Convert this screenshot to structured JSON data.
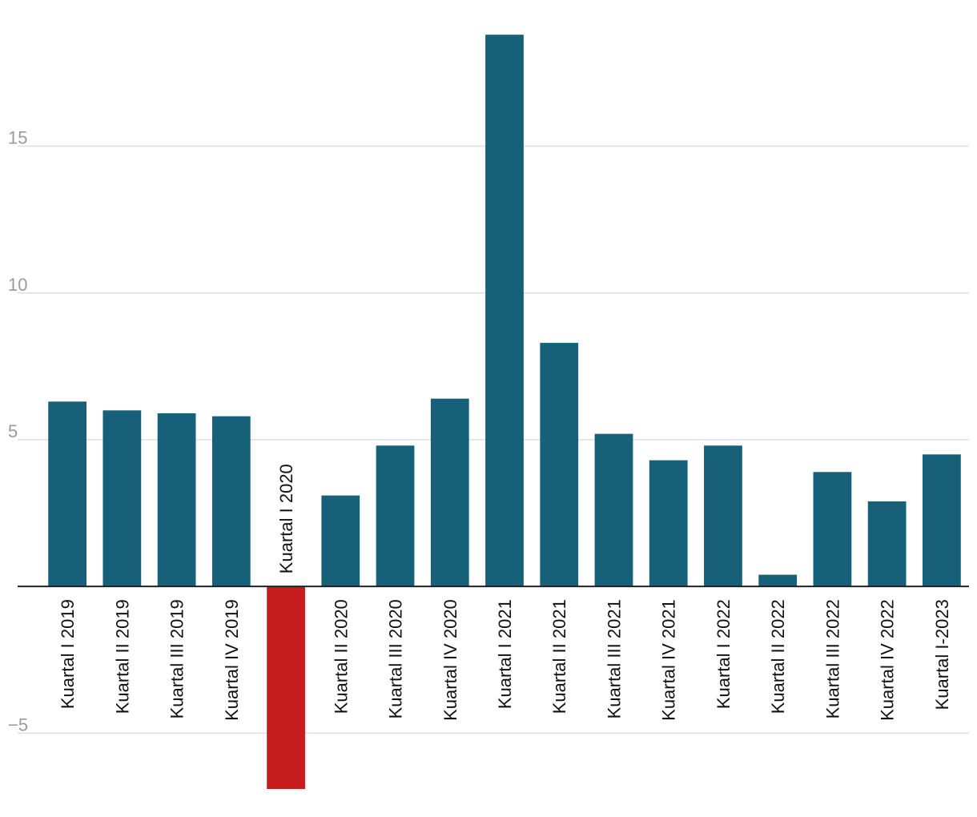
{
  "chart_data": {
    "type": "bar",
    "title": "",
    "xlabel": "",
    "ylabel": "",
    "categories": [
      "Kuartal I 2019",
      "Kuartal II 2019",
      "Kuartal III 2019",
      "Kuartal IV 2019",
      "Kuartal I 2020",
      "Kuartal II 2020",
      "Kuartal III 2020",
      "Kuartal IV 2020",
      "Kuartal I 2021",
      "Kuartal II 2021",
      "Kuartal III 2021",
      "Kuartal IV 2021",
      "Kuartal I 2022",
      "Kuartal II 2022",
      "Kuartal III 2022",
      "Kuartal IV 2022",
      "Kuartal I-2023"
    ],
    "values": [
      6.3,
      6.0,
      5.9,
      5.8,
      -6.9,
      3.1,
      4.8,
      6.4,
      18.8,
      8.3,
      5.2,
      4.3,
      4.8,
      0.4,
      3.9,
      2.9,
      4.5
    ],
    "ylim": [
      -7.5,
      19.3
    ],
    "yticks": [
      -5,
      5,
      10,
      15
    ],
    "ytick_labels": [
      "−5",
      "5",
      "10",
      "15"
    ],
    "grid": true,
    "colors": {
      "positive": "#17607a",
      "negative": "#c71c1d"
    }
  }
}
